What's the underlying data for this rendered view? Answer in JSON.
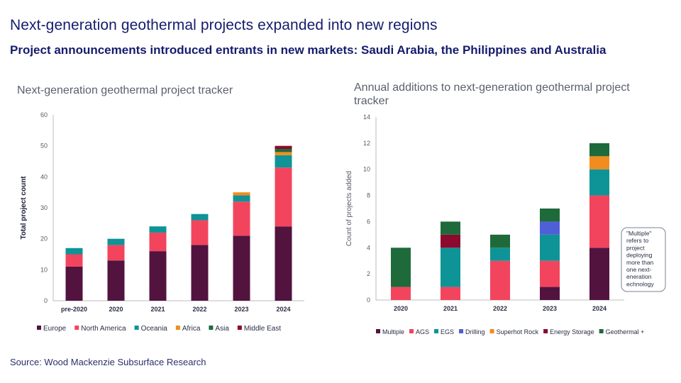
{
  "header": {
    "title": "Next-generation geothermal projects expanded into new regions",
    "subtitle": "Project announcements introduced entrants in new markets: Saudi Arabia, the Philippines and Australia"
  },
  "footer": {
    "source": "Source: Wood Mackenzie Subsurface Research"
  },
  "colors": {
    "europe": "#52133f",
    "north_america": "#f2455d",
    "oceania": "#0e9497",
    "africa": "#f28c1e",
    "asia": "#1e6a3a",
    "middle_east": "#8b0a2e",
    "drilling": "#4f5fd8",
    "axis_text": "#555b66",
    "axis_line": "#bcbcbc"
  },
  "chart_data": [
    {
      "type": "bar",
      "stacked": true,
      "title": "Next-generation geothermal project tracker",
      "xlabel": "",
      "ylabel": "Total project count",
      "ylim": [
        0,
        60
      ],
      "yticks": [
        0,
        10,
        20,
        30,
        40,
        50,
        60
      ],
      "grid": false,
      "legend_position": "bottom",
      "categories": [
        "pre-2020",
        "2020",
        "2021",
        "2022",
        "2023",
        "2024"
      ],
      "series": [
        {
          "name": "Europe",
          "color": "#52133f",
          "values": [
            11,
            13,
            16,
            18,
            21,
            24
          ]
        },
        {
          "name": "North America",
          "color": "#f2455d",
          "values": [
            4,
            5,
            6,
            8,
            11,
            19
          ]
        },
        {
          "name": "Oceania",
          "color": "#0e9497",
          "values": [
            2,
            2,
            2,
            2,
            2,
            4
          ]
        },
        {
          "name": "Africa",
          "color": "#f28c1e",
          "values": [
            0,
            0,
            0,
            0,
            1,
            1
          ]
        },
        {
          "name": "Asia",
          "color": "#1e6a3a",
          "values": [
            0,
            0,
            0,
            0,
            0,
            1
          ]
        },
        {
          "name": "Middle East",
          "color": "#8b0a2e",
          "values": [
            0,
            0,
            0,
            0,
            0,
            1
          ]
        }
      ]
    },
    {
      "type": "bar",
      "stacked": true,
      "title": "Annual additions to next-generation geothermal project tracker",
      "xlabel": "",
      "ylabel": "Count of projects added",
      "ylim": [
        0,
        14
      ],
      "yticks": [
        0,
        2,
        4,
        6,
        8,
        10,
        12,
        14
      ],
      "grid": false,
      "legend_position": "bottom",
      "categories": [
        "2020",
        "2021",
        "2022",
        "2023",
        "2024"
      ],
      "series": [
        {
          "name": "Multiple",
          "color": "#52133f",
          "values": [
            0,
            0,
            0,
            1,
            4
          ]
        },
        {
          "name": "AGS",
          "color": "#f2455d",
          "values": [
            1,
            1,
            3,
            2,
            4
          ]
        },
        {
          "name": "EGS",
          "color": "#0e9497",
          "values": [
            0,
            3,
            1,
            2,
            2
          ]
        },
        {
          "name": "Drilling",
          "color": "#4f5fd8",
          "values": [
            0,
            0,
            0,
            1,
            0
          ]
        },
        {
          "name": "Superhot Rock",
          "color": "#f28c1e",
          "values": [
            0,
            0,
            0,
            0,
            1
          ]
        },
        {
          "name": "Energy Storage",
          "color": "#8b0a2e",
          "values": [
            0,
            1,
            0,
            0,
            0
          ]
        },
        {
          "name": "Geothermal +",
          "color": "#1e6a3a",
          "values": [
            3,
            1,
            1,
            1,
            1
          ]
        }
      ],
      "annotation": "\"Multiple\" refers to project deploying more than one next-generation technology"
    }
  ]
}
